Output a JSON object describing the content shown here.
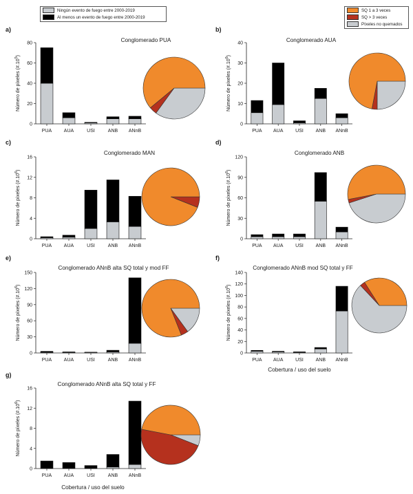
{
  "bar_legend": [
    {
      "label": "Ningún evento de fuego entre 2000-2019",
      "color": "#c8ccd0"
    },
    {
      "label": "Al menos un evento de fuego entre 2000-2019",
      "color": "#000000"
    }
  ],
  "pie_legend": [
    {
      "label": "SQ 1 a 3 veces",
      "color": "#f08a2c"
    },
    {
      "label": "SQ > 3 veces",
      "color": "#b5311e"
    },
    {
      "label": "Píxeles no quemados",
      "color": "#c8ccd0"
    }
  ],
  "colors": {
    "unburned": "#c8ccd0",
    "burned": "#000000",
    "sq13": "#f08a2c",
    "sq3": "#b5311e",
    "nb": "#c8ccd0"
  },
  "ylabel_base": "Número de píxeles (#.10",
  "xlabel": "Cobertura / uso del suelo",
  "chart_data": [
    {
      "type": "bar",
      "label": "a)",
      "title": "Conglomerado PUA",
      "exponent": "5",
      "categories": [
        "PUA",
        "AUA",
        "USI",
        "ANB",
        "ANnB"
      ],
      "ylim": [
        0,
        80
      ],
      "yticks": [
        0,
        20,
        40,
        60,
        80
      ],
      "series": [
        {
          "name": "Ningún evento de fuego entre 2000-2019",
          "values": [
            40,
            6,
            1,
            5,
            5
          ]
        },
        {
          "name": "Al menos un evento de fuego entre 2000-2019",
          "values": [
            35,
            5,
            0.5,
            2,
            2.5
          ]
        }
      ],
      "pie": [
        {
          "name": "SQ 1 a 3 veces",
          "value": 0.61
        },
        {
          "name": "SQ > 3 veces",
          "value": 0.04
        },
        {
          "name": "Píxeles no quemados",
          "value": 0.35
        }
      ],
      "xlabel": ""
    },
    {
      "type": "bar",
      "label": "b)",
      "title": "Conglomerado AUA",
      "exponent": "6",
      "categories": [
        "PUA",
        "AUA",
        "USI",
        "ANB",
        "ANnB"
      ],
      "ylim": [
        0,
        40
      ],
      "yticks": [
        0,
        10,
        20,
        30,
        40
      ],
      "series": [
        {
          "name": "Ningún evento de fuego entre 2000-2019",
          "values": [
            5.5,
            9.5,
            0.5,
            12.5,
            3
          ]
        },
        {
          "name": "Al menos un evento de fuego entre 2000-2019",
          "values": [
            6,
            20.5,
            1,
            5,
            2
          ]
        }
      ],
      "pie": [
        {
          "name": "SQ 1 a 3 veces",
          "value": 0.72
        },
        {
          "name": "SQ > 3 veces",
          "value": 0.03
        },
        {
          "name": "Píxeles no quemados",
          "value": 0.25
        }
      ],
      "xlabel": ""
    },
    {
      "type": "bar",
      "label": "c)",
      "title": "Conglomerado MAN",
      "exponent": "6",
      "categories": [
        "PUA",
        "AUA",
        "USI",
        "ANB",
        "ANnB"
      ],
      "ylim": [
        0,
        16
      ],
      "yticks": [
        0,
        4,
        8,
        12,
        16
      ],
      "series": [
        {
          "name": "Ningún evento de fuego entre 2000-2019",
          "values": [
            0.2,
            0.3,
            2,
            3.3,
            2.4
          ]
        },
        {
          "name": "Al menos un evento de fuego entre 2000-2019",
          "values": [
            0.2,
            0.4,
            7.5,
            8.2,
            5.9
          ]
        }
      ],
      "pie": [
        {
          "name": "SQ 1 a 3 veces",
          "value": 0.94
        },
        {
          "name": "SQ > 3 veces",
          "value": 0.06
        },
        {
          "name": "Píxeles no quemados",
          "value": 0
        }
      ],
      "xlabel": ""
    },
    {
      "type": "bar",
      "label": "d)",
      "title": "Conglomerado ANB",
      "exponent": "6",
      "categories": [
        "PUA",
        "AUA",
        "USI",
        "ANB",
        "ANnB"
      ],
      "ylim": [
        0,
        120
      ],
      "yticks": [
        0,
        30,
        60,
        90,
        120
      ],
      "series": [
        {
          "name": "Ningún evento de fuego entre 2000-2019",
          "values": [
            3,
            3,
            3,
            55,
            10
          ]
        },
        {
          "name": "Al menos un evento de fuego entre 2000-2019",
          "values": [
            3,
            4,
            4,
            42,
            7
          ]
        }
      ],
      "pie": [
        {
          "name": "SQ 1 a 3 veces",
          "value": 0.53
        },
        {
          "name": "SQ > 3 veces",
          "value": 0.02
        },
        {
          "name": "Píxeles no quemados",
          "value": 0.45
        }
      ],
      "xlabel": ""
    },
    {
      "type": "bar",
      "label": "e)",
      "title": "Conglomerado ANnB alta SQ total y mod FF",
      "exponent": "6",
      "categories": [
        "PUA",
        "AUA",
        "USI",
        "ANB",
        "ANnB"
      ],
      "ylim": [
        0,
        150
      ],
      "yticks": [
        0,
        30,
        60,
        90,
        120,
        150
      ],
      "series": [
        {
          "name": "Ningún evento de fuego entre 2000-2019",
          "values": [
            1,
            1,
            1,
            2,
            18
          ]
        },
        {
          "name": "Al menos un evento de fuego entre 2000-2019",
          "values": [
            2,
            1,
            0.5,
            3,
            122
          ]
        }
      ],
      "pie": [
        {
          "name": "SQ 1 a 3 veces",
          "value": 0.81
        },
        {
          "name": "SQ > 3 veces",
          "value": 0.04
        },
        {
          "name": "Píxeles no quemados",
          "value": 0.15
        }
      ],
      "xlabel": ""
    },
    {
      "type": "bar",
      "label": "f)",
      "title": "Conglomerado ANnB mod SQ total y FF",
      "exponent": "6",
      "categories": [
        "PUA",
        "AUA",
        "USI",
        "ANB",
        "ANnB"
      ],
      "ylim": [
        0,
        140
      ],
      "yticks": [
        0,
        20,
        40,
        60,
        80,
        100,
        120,
        140
      ],
      "series": [
        {
          "name": "Ningún evento de fuego entre 2000-2019",
          "values": [
            3,
            2,
            1,
            7,
            73
          ]
        },
        {
          "name": "Al menos un evento de fuego entre 2000-2019",
          "values": [
            1.5,
            1,
            1,
            2.5,
            43
          ]
        }
      ],
      "pie": [
        {
          "name": "SQ 1 a 3 veces",
          "value": 0.34
        },
        {
          "name": "SQ > 3 veces",
          "value": 0.03
        },
        {
          "name": "Píxeles no quemados",
          "value": 0.63
        }
      ],
      "xlabel": "Cobertura / uso del suelo"
    },
    {
      "type": "bar",
      "label": "g)",
      "title": "Conglomerado ANnB alta SQ total y FF",
      "exponent": "6",
      "categories": [
        "PUA",
        "AUA",
        "USI",
        "ANB",
        "ANnB"
      ],
      "ylim": [
        0,
        16
      ],
      "yticks": [
        0,
        4,
        8,
        12,
        16
      ],
      "series": [
        {
          "name": "Ningún evento de fuego entre 2000-2019",
          "values": [
            0,
            0,
            0,
            0.3,
            0.8
          ]
        },
        {
          "name": "Al menos un evento de fuego entre 2000-2019",
          "values": [
            1.5,
            1.2,
            0.6,
            2.5,
            12.6
          ]
        }
      ],
      "pie": [
        {
          "name": "SQ 1 a 3 veces",
          "value": 0.47
        },
        {
          "name": "SQ > 3 veces",
          "value": 0.47
        },
        {
          "name": "Píxeles no quemados",
          "value": 0.06
        }
      ],
      "xlabel": "Cobertura / uso del suelo"
    }
  ]
}
